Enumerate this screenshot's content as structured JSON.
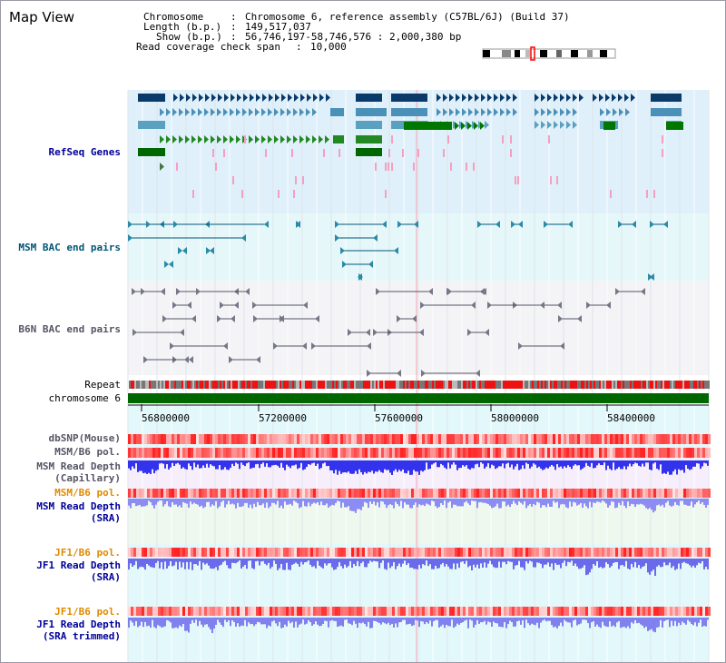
{
  "page": {
    "title": "Map View"
  },
  "info": {
    "chromosome_key": "Chromosome",
    "chromosome_val": "Chromosome 6, reference assembly (C57BL/6J) (Build 37)",
    "length_key": "Length (b.p.)",
    "length_val": "149,517,037",
    "show_key": "Show (b.p.)",
    "show_val": "56,746,197-58,746,576 : 2,000,380 bp",
    "coverage_key": "Read coverage check span",
    "coverage_val": "10,000"
  },
  "tracks": {
    "refseq": "RefSeq Genes",
    "msm_bac": "MSM BAC end pairs",
    "b6n_bac": "B6N BAC end pairs",
    "repeat": "Repeat",
    "chromosome": "chromosome 6",
    "dbsnp": "dbSNP(Mouse)",
    "msm_b6_pol": "MSM/B6 pol.",
    "msm_depth_cap_1": "MSM Read Depth",
    "msm_depth_cap_2": "(Capillary)",
    "msm_b6_pol_2": "MSM/B6 pol.",
    "msm_depth_sra_1": "MSM Read Depth",
    "msm_depth_sra_2": "(SRA)",
    "jf1_b6_pol": "JF1/B6 pol.",
    "jf1_depth_sra_1": "JF1 Read Depth",
    "jf1_depth_sra_2": "(SRA)",
    "jf1_b6_pol_2": "JF1/B6 pol.",
    "jf1_depth_trim_1": "JF1 Read Depth",
    "jf1_depth_trim_2": "(SRA trimmed)"
  },
  "axis": {
    "ticks": [
      "56800000",
      "57200000",
      "57600000",
      "58000000",
      "58400000"
    ]
  },
  "colors": {
    "refseq_bg": "#dff0fa",
    "msm_bac_bg": "#e6f7fa",
    "b6n_bac_bg": "#f4f4f6",
    "chromosome_bar": "#006600",
    "label_blue": "#000099",
    "label_teal": "#005577",
    "label_orange": "#e08a00",
    "depth_blue": "#3333ee",
    "pol_red": "#ee2222"
  }
}
